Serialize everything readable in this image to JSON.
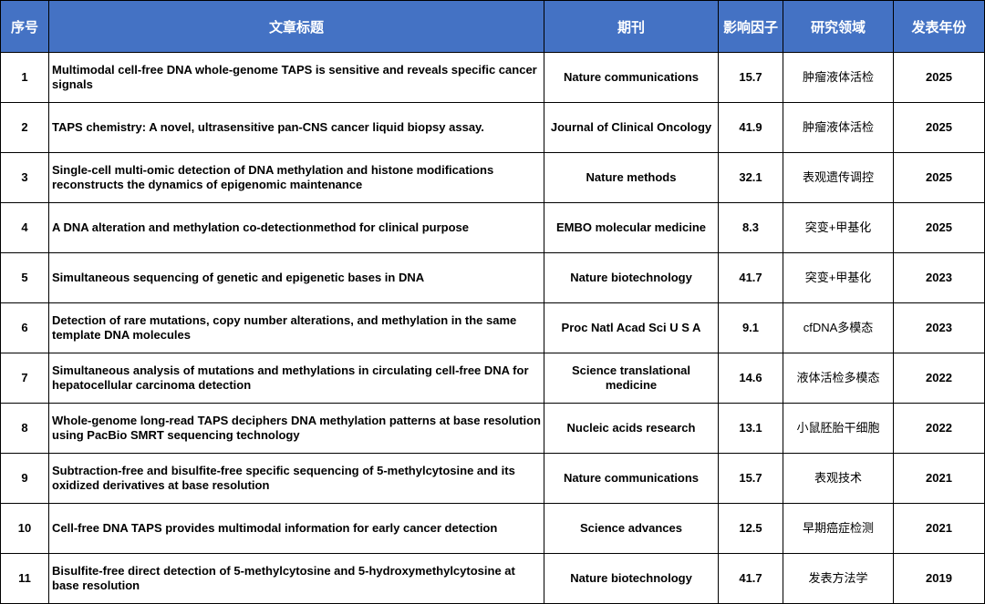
{
  "headers": [
    "序号",
    "文章标题",
    "期刊",
    "影响因子",
    "研究领域",
    "发表年份"
  ],
  "rows": [
    {
      "num": "1",
      "title": "Multimodal cell-free DNA whole-genome TAPS is sensitive and reveals specific cancer signals",
      "journal": "Nature communications",
      "impact": "15.7",
      "field": "肿瘤液体活检",
      "year": "2025"
    },
    {
      "num": "2",
      "title": "TAPS chemistry: A novel, ultrasensitive pan-CNS cancer liquid biopsy assay.",
      "journal": "Journal of Clinical Oncology",
      "impact": "41.9",
      "field": "肿瘤液体活检",
      "year": "2025"
    },
    {
      "num": "3",
      "title": "Single-cell multi-omic detection of DNA methylation and histone modifications reconstructs the dynamics of epigenomic maintenance",
      "journal": "Nature methods",
      "impact": "32.1",
      "field": "表观遗传调控",
      "year": "2025"
    },
    {
      "num": "4",
      "title": "A DNA alteration and methylation co-detectionmethod for clinical purpose",
      "journal": "EMBO molecular medicine",
      "impact": "8.3",
      "field": "突变+甲基化",
      "year": "2025"
    },
    {
      "num": "5",
      "title": "Simultaneous sequencing of genetic and epigenetic bases in DNA",
      "journal": "Nature biotechnology",
      "impact": "41.7",
      "field": "突变+甲基化",
      "year": "2023"
    },
    {
      "num": "6",
      "title": "Detection of rare mutations, copy number alterations,  and methylation in the same template DNA molecules",
      "journal": "Proc Natl Acad Sci U S A",
      "impact": "9.1",
      "field": "cfDNA多模态",
      "year": "2023"
    },
    {
      "num": "7",
      "title": "Simultaneous analysis of mutations and methylations in circulating cell-free DNA for hepatocellular carcinoma detection",
      "journal": "Science translational medicine",
      "impact": "14.6",
      "field": "液体活检多模态",
      "year": "2022"
    },
    {
      "num": "8",
      "title": "Whole-genome long-read TAPS deciphers DNA methylation patterns at base resolution using PacBio SMRT sequencing technology",
      "journal": "Nucleic acids research",
      "impact": "13.1",
      "field": "小鼠胚胎干细胞",
      "year": "2022"
    },
    {
      "num": "9",
      "title": "Subtraction-free and bisulfite-free specific sequencing of 5-methylcytosine and its oxidized derivatives at base resolution",
      "journal": "Nature communications",
      "impact": "15.7",
      "field": "表观技术",
      "year": "2021"
    },
    {
      "num": "10",
      "title": "Cell-free DNA TAPS provides multimodal information for early cancer detection",
      "journal": "Science advances",
      "impact": "12.5",
      "field": "早期癌症检测",
      "year": "2021"
    },
    {
      "num": "11",
      "title": "Bisulfite-free direct detection of 5-methylcytosine and 5-hydroxymethylcytosine at base resolution",
      "journal": "Nature biotechnology",
      "impact": "41.7",
      "field": "发表方法学",
      "year": "2019"
    }
  ]
}
